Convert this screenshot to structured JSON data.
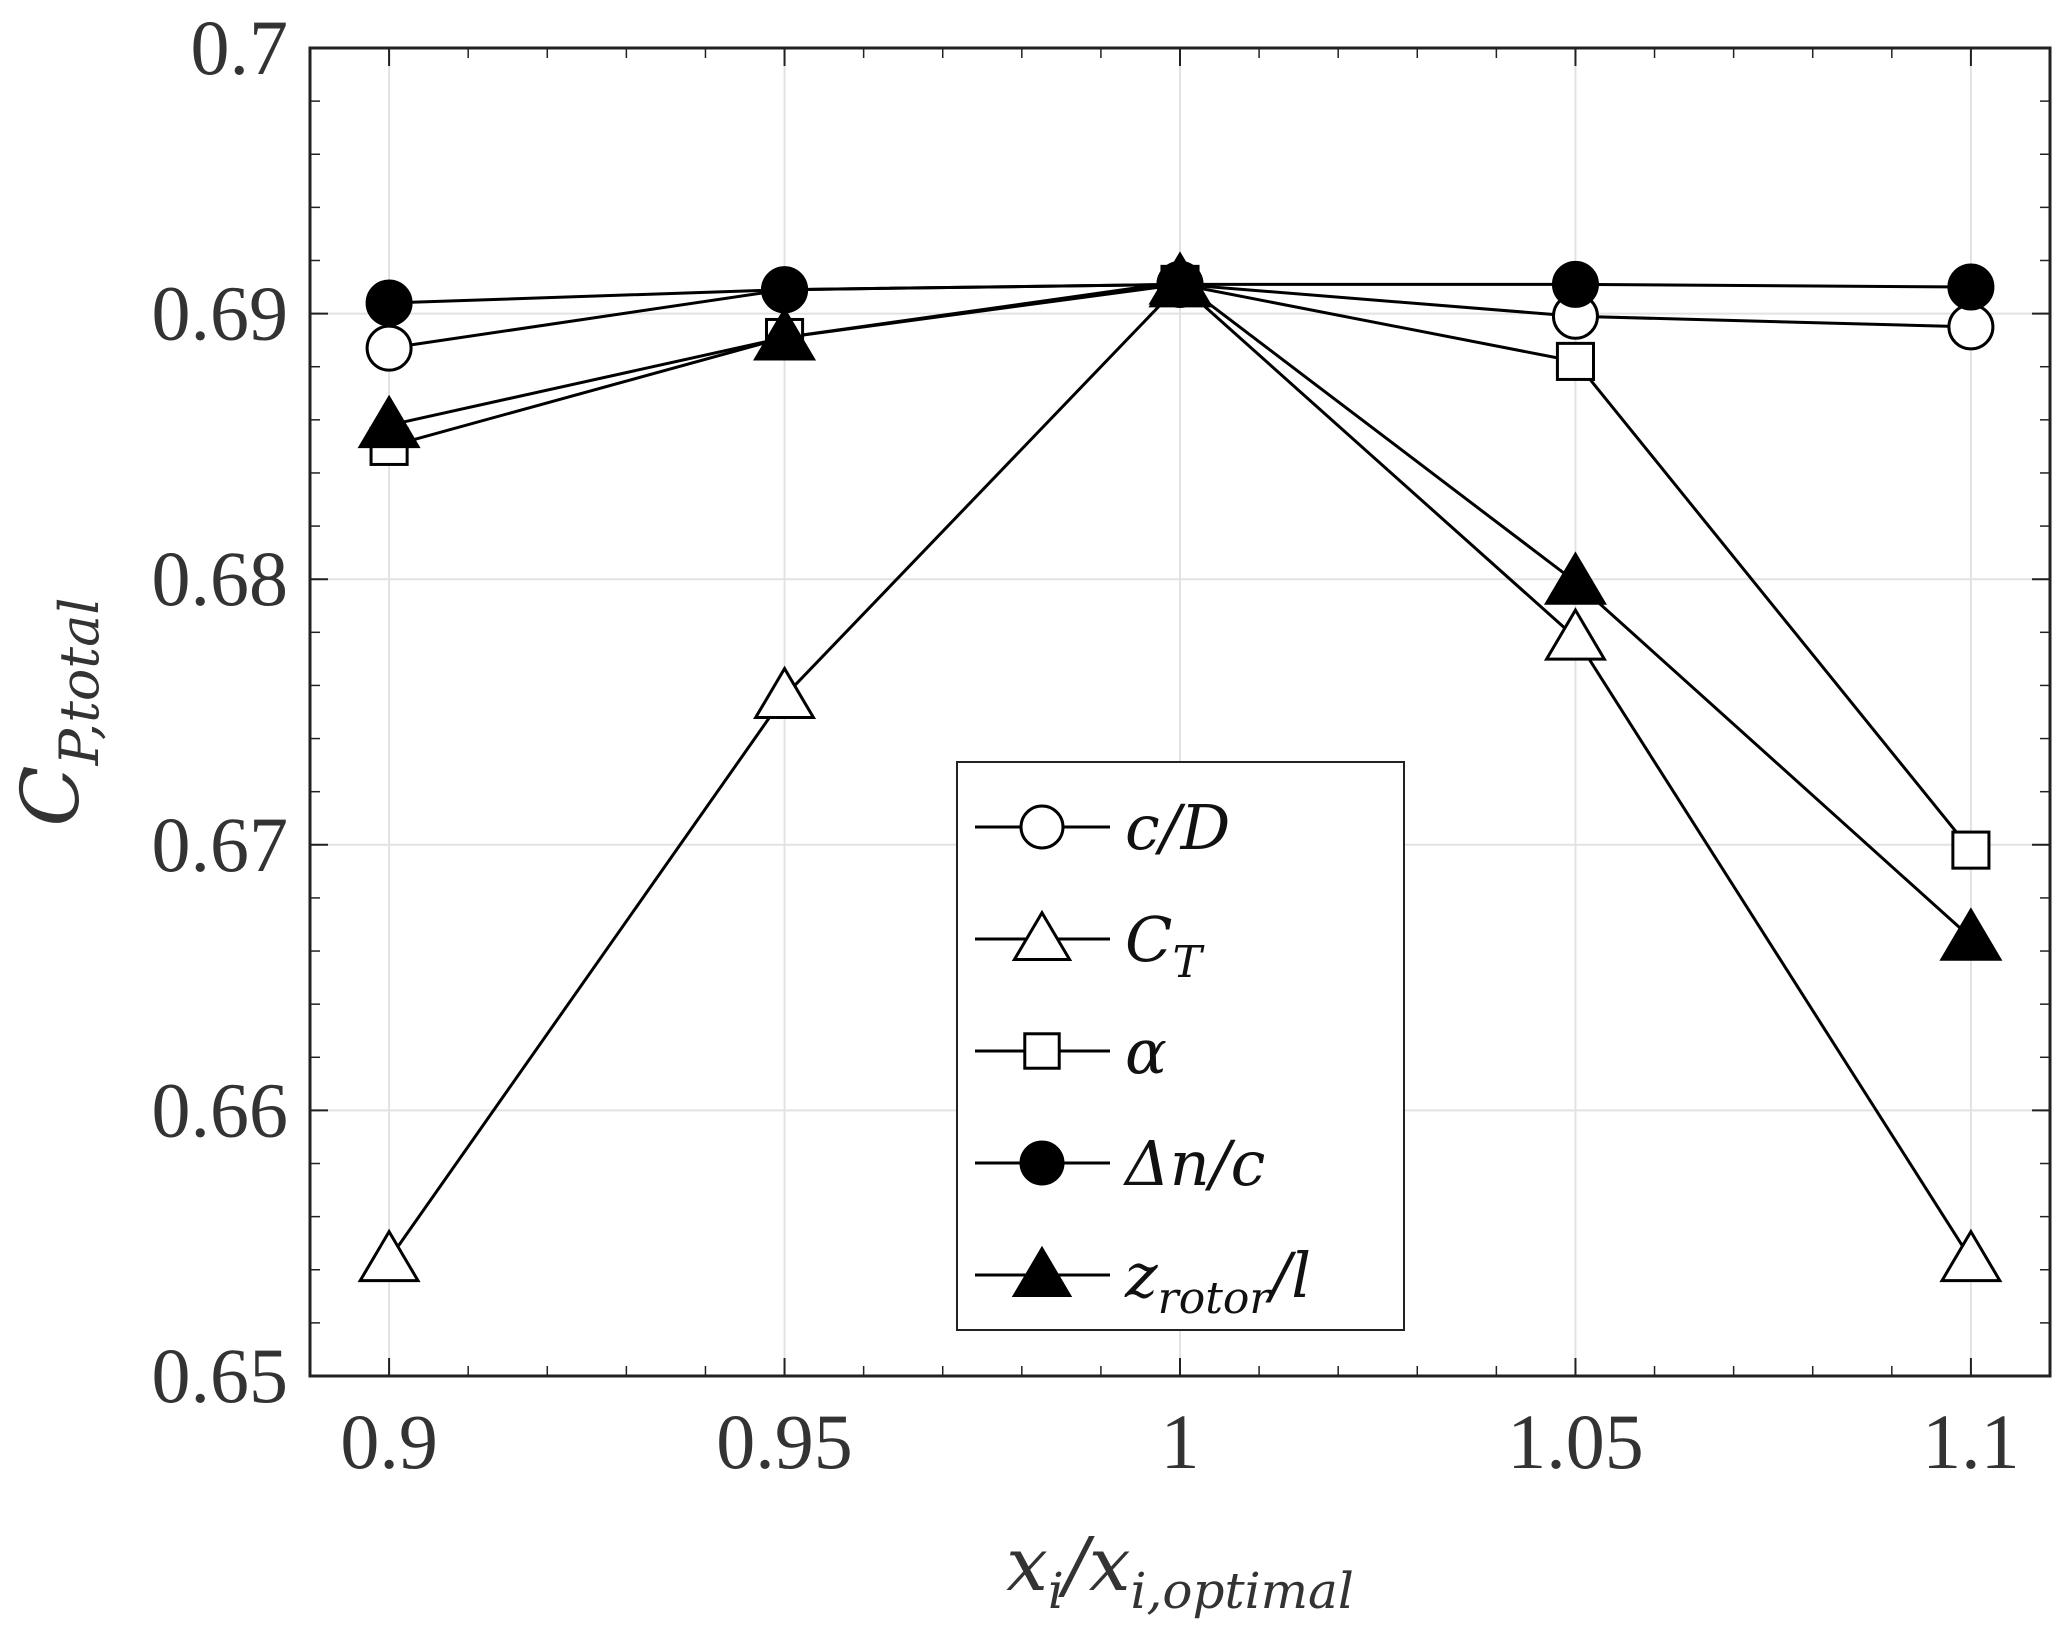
{
  "chart_data": {
    "type": "line",
    "xlabel": "x_i/x_i,optimal",
    "ylabel": "C_P,total",
    "x": [
      0.9,
      0.95,
      1,
      1.05,
      1.1
    ],
    "xticks": [
      "0.9",
      "0.95",
      "1",
      "1.05",
      "1.1"
    ],
    "yticks": [
      "0.65",
      "0.66",
      "0.67",
      "0.68",
      "0.69",
      "0.7"
    ],
    "xlim": [
      0.89,
      1.11
    ],
    "ylim": [
      0.65,
      0.7
    ],
    "grid": true,
    "legend_position": "bottom-center",
    "series": [
      {
        "name": "c/D",
        "marker": "circle-open",
        "values": [
          0.6887,
          0.6909,
          0.6911,
          0.6899,
          0.6895
        ]
      },
      {
        "name": "C_T",
        "marker": "triangle-open",
        "values": [
          0.6544,
          0.6756,
          0.6911,
          0.6778,
          0.6544
        ]
      },
      {
        "name": "α",
        "marker": "square-open",
        "values": [
          0.685,
          0.6891,
          0.6911,
          0.6882,
          0.6698
        ]
      },
      {
        "name": "Δn/c",
        "marker": "circle-filled",
        "values": [
          0.6904,
          0.6909,
          0.6911,
          0.6911,
          0.691
        ]
      },
      {
        "name": "z_rotor/l",
        "marker": "triangle-filled",
        "values": [
          0.6858,
          0.6891,
          0.6912,
          0.6799,
          0.6665
        ]
      }
    ]
  }
}
